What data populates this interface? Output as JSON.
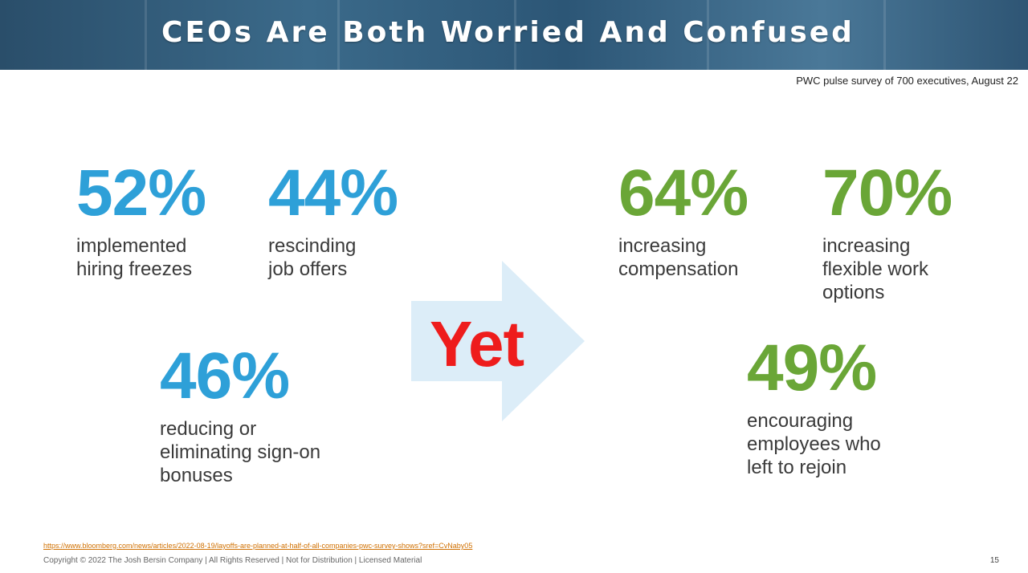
{
  "slide": {
    "title": "CEOs Are Both Worried And Confused",
    "source_note": "PWC pulse survey of 700 executives, August 22"
  },
  "left_stats": [
    {
      "value": "52%",
      "label": "implemented\nhiring freezes"
    },
    {
      "value": "44%",
      "label": "rescinding\njob offers"
    },
    {
      "value": "46%",
      "label": "reducing or\neliminating sign-on\nbonuses"
    }
  ],
  "middle": {
    "text": "Yet"
  },
  "right_stats": [
    {
      "value": "64%",
      "label": "increasing\ncompensation"
    },
    {
      "value": "70%",
      "label": "increasing\nflexible work\noptions"
    },
    {
      "value": "49%",
      "label": "encouraging\nemployees who\nleft to rejoin"
    }
  ],
  "footer": {
    "link": "https://www.bloomberg.com/news/articles/2022-08-19/layoffs-are-planned-at-half-of-all-companies-pwc-survey-shows?sref=CvNaby05",
    "copyright": "Copyright © 2022 The Josh Bersin Company | All Rights Reserved | Not for Distribution | Licensed Material",
    "page_number": "15"
  },
  "colors": {
    "left_accent": "#2ea0d8",
    "right_accent": "#6aa637",
    "yet": "#ee1c1c",
    "arrow": "#dcedf8"
  }
}
